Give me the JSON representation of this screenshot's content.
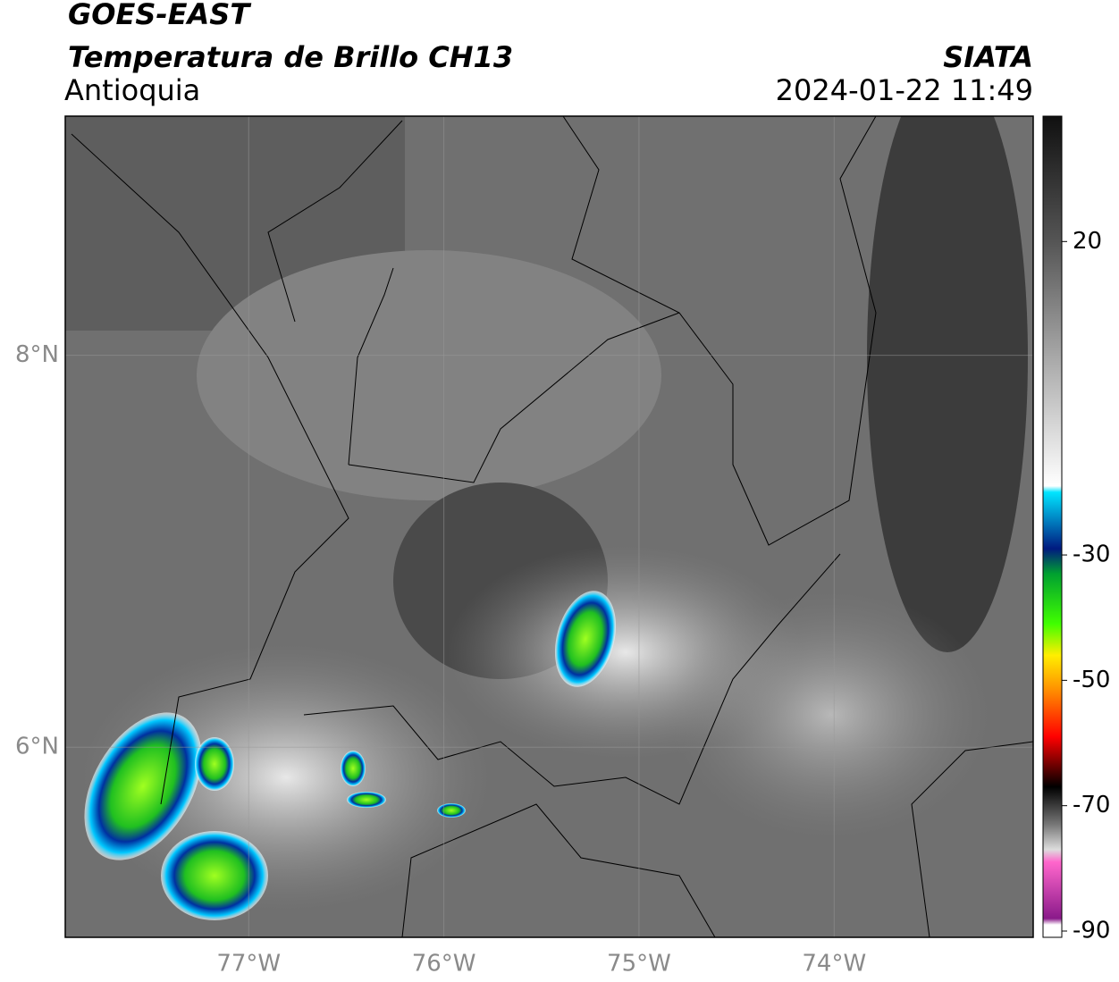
{
  "header": {
    "satellite": "GOES-EAST",
    "product": "Temperatura de Brillo CH13",
    "region": "Antioquia",
    "source": "SIATA",
    "datetime": "2024-01-22 11:49"
  },
  "map": {
    "xlim": [
      -77.94,
      -72.98
    ],
    "ylim": [
      5.03,
      9.22
    ],
    "xticks": [
      {
        "value": -77,
        "label": "77°W"
      },
      {
        "value": -76,
        "label": "76°W"
      },
      {
        "value": -75,
        "label": "75°W"
      },
      {
        "value": -74,
        "label": "74°W"
      }
    ],
    "yticks": [
      {
        "value": 6,
        "label": "6°N"
      },
      {
        "value": 8,
        "label": "8°N"
      }
    ],
    "grid": true
  },
  "colorbar": {
    "lim": [
      -91,
      40
    ],
    "ticks": [
      -90,
      -70,
      -50,
      -30,
      20
    ],
    "colormap": [
      {
        "value": 40,
        "color": "#101010"
      },
      {
        "value": 20,
        "color": "#555555"
      },
      {
        "value": 1,
        "color": "#aaaaaa"
      },
      {
        "value": -19,
        "color": "#ffffff"
      },
      {
        "value": -20,
        "color": "#00e5ff"
      },
      {
        "value": -29,
        "color": "#001a80"
      },
      {
        "value": -33,
        "color": "#00a030"
      },
      {
        "value": -41,
        "color": "#40ff00"
      },
      {
        "value": -46,
        "color": "#ffee00"
      },
      {
        "value": -51,
        "color": "#ff9900"
      },
      {
        "value": -59,
        "color": "#ff0000"
      },
      {
        "value": -63,
        "color": "#800000"
      },
      {
        "value": -67,
        "color": "#000000"
      },
      {
        "value": -73,
        "color": "#777777"
      },
      {
        "value": -77,
        "color": "#dddddd"
      },
      {
        "value": -79,
        "color": "#ff66cc"
      },
      {
        "value": -88,
        "color": "#8a1a8a"
      },
      {
        "value": -89,
        "color": "#ffffff"
      }
    ]
  }
}
